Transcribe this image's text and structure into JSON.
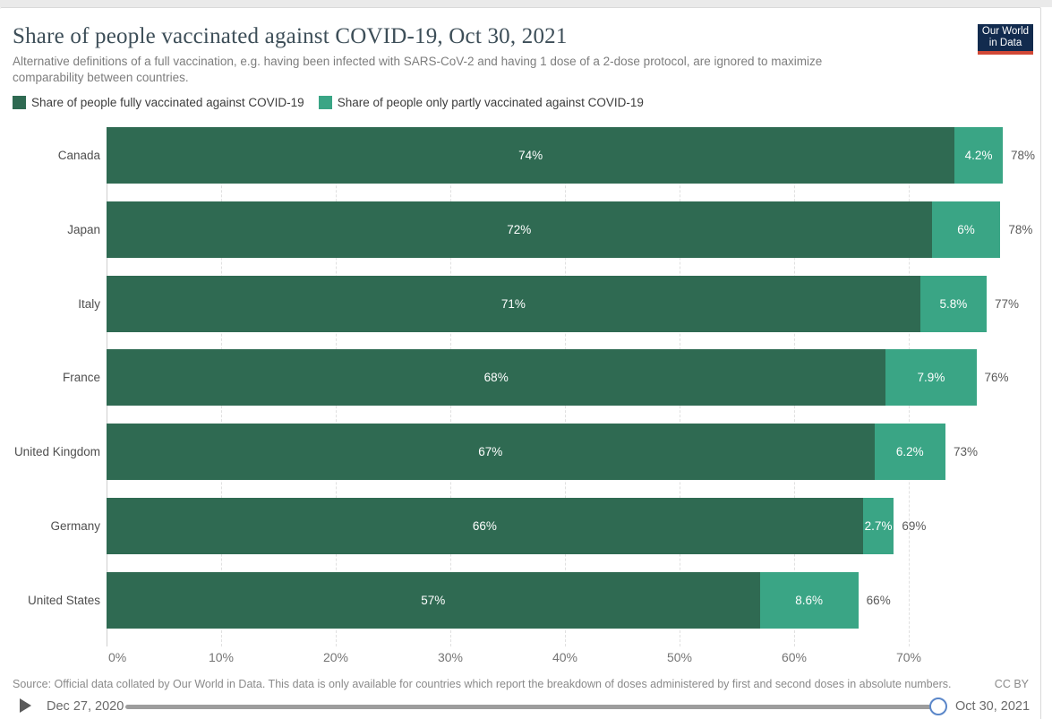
{
  "header": {
    "title": "Share of people vaccinated against COVID-19, Oct 30, 2021",
    "subtitle": "Alternative definitions of a full vaccination, e.g. having been infected with SARS-CoV-2 and having 1 dose of a 2-dose protocol, are ignored to maximize comparability between countries.",
    "logo": {
      "line1": "Our World",
      "line2": "in Data"
    }
  },
  "legend": {
    "items": [
      {
        "key": "fully",
        "label": "Share of people fully vaccinated against COVID-19",
        "color": "#2f6a52"
      },
      {
        "key": "partly",
        "label": "Share of people only partly vaccinated against COVID-19",
        "color": "#3aa585"
      }
    ]
  },
  "chart_data": {
    "type": "bar",
    "stacked": true,
    "orientation": "horizontal",
    "title": "Share of people vaccinated against COVID-19, Oct 30, 2021",
    "categories": [
      "Canada",
      "Japan",
      "Italy",
      "France",
      "United Kingdom",
      "Germany",
      "United States"
    ],
    "series": [
      {
        "name": "Share of people fully vaccinated against COVID-19",
        "color": "#2f6a52",
        "values": [
          74,
          72,
          71,
          68,
          67,
          66,
          57
        ],
        "value_labels": [
          "74%",
          "72%",
          "71%",
          "68%",
          "67%",
          "66%",
          "57%"
        ]
      },
      {
        "name": "Share of people only partly vaccinated against COVID-19",
        "color": "#3aa585",
        "values": [
          4.2,
          6,
          5.8,
          7.9,
          6.2,
          2.7,
          8.6
        ],
        "value_labels": [
          "4.2%",
          "6%",
          "5.8%",
          "7.9%",
          "6.2%",
          "2.7%",
          "8.6%"
        ]
      }
    ],
    "totals": [
      "78%",
      "78%",
      "77%",
      "76%",
      "73%",
      "69%",
      "66%"
    ],
    "x_tick_values": [
      0,
      10,
      20,
      30,
      40,
      50,
      60,
      70
    ],
    "x_tick_labels": [
      "0%",
      "10%",
      "20%",
      "30%",
      "40%",
      "50%",
      "60%",
      "70%"
    ],
    "xlim": [
      0,
      81.5
    ],
    "grid": "dashed-vertical",
    "legend_position": "top"
  },
  "footer": {
    "source": "Source: Official data collated by Our World in Data. This data is only available for countries which report the breakdown of doses administered by first and second doses in absolute numbers.",
    "license": "CC BY"
  },
  "timeline": {
    "start": "Dec 27, 2020",
    "end": "Oct 30, 2021",
    "handle_color": "#5b87c9"
  }
}
